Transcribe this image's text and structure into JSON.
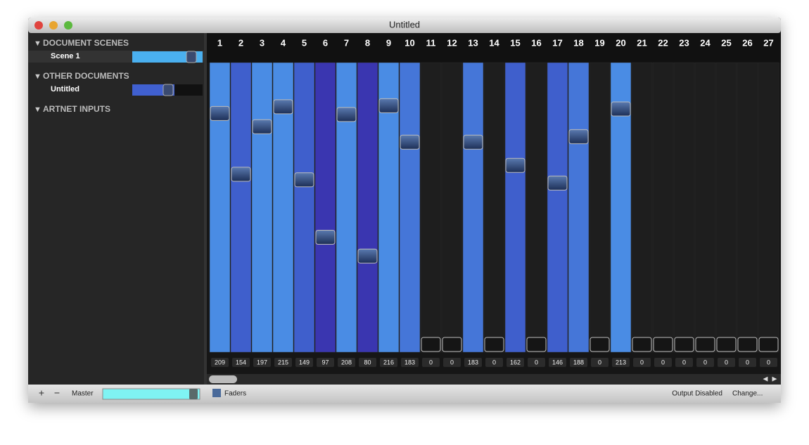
{
  "window": {
    "title": "Untitled"
  },
  "sidebar": {
    "sections": [
      {
        "title": "DOCUMENT SCENES",
        "items": [
          "Scene 1"
        ]
      },
      {
        "title": "OTHER DOCUMENTS",
        "items": [
          "Untitled"
        ]
      },
      {
        "title": "ARTNET INPUTS",
        "items": []
      }
    ]
  },
  "channels": [
    {
      "label": "1",
      "value": 209,
      "color": "#4a8ce4"
    },
    {
      "label": "2",
      "value": 154,
      "color": "#3f5fcc"
    },
    {
      "label": "3",
      "value": 197,
      "color": "#4a8ce4"
    },
    {
      "label": "4",
      "value": 215,
      "color": "#4a8ce4"
    },
    {
      "label": "5",
      "value": 149,
      "color": "#3f5fcc"
    },
    {
      "label": "6",
      "value": 97,
      "color": "#3a36b0"
    },
    {
      "label": "7",
      "value": 208,
      "color": "#4a8ce4"
    },
    {
      "label": "8",
      "value": 80,
      "color": "#3a36b0"
    },
    {
      "label": "9",
      "value": 216,
      "color": "#4a8ce4"
    },
    {
      "label": "10",
      "value": 183,
      "color": "#4576d8"
    },
    {
      "label": "11",
      "value": 0,
      "color": "#1e1e1e"
    },
    {
      "label": "12",
      "value": 0,
      "color": "#1e1e1e"
    },
    {
      "label": "13",
      "value": 183,
      "color": "#4576d8"
    },
    {
      "label": "14",
      "value": 0,
      "color": "#1e1e1e"
    },
    {
      "label": "15",
      "value": 162,
      "color": "#3f5fcc"
    },
    {
      "label": "16",
      "value": 0,
      "color": "#1e1e1e"
    },
    {
      "label": "17",
      "value": 146,
      "color": "#3f5fcc"
    },
    {
      "label": "18",
      "value": 188,
      "color": "#4576d8"
    },
    {
      "label": "19",
      "value": 0,
      "color": "#1e1e1e"
    },
    {
      "label": "20",
      "value": 213,
      "color": "#4a8ce4"
    },
    {
      "label": "21",
      "value": 0,
      "color": "#1e1e1e"
    },
    {
      "label": "22",
      "value": 0,
      "color": "#1e1e1e"
    },
    {
      "label": "23",
      "value": 0,
      "color": "#1e1e1e"
    },
    {
      "label": "24",
      "value": 0,
      "color": "#1e1e1e"
    },
    {
      "label": "25",
      "value": 0,
      "color": "#1e1e1e"
    },
    {
      "label": "26",
      "value": 0,
      "color": "#1e1e1e"
    },
    {
      "label": "27",
      "value": 0,
      "color": "#1e1e1e"
    }
  ],
  "footer": {
    "add": "+",
    "remove": "−",
    "master": "Master",
    "view": "Faders",
    "status": "Output Disabled",
    "change": "Change..."
  }
}
